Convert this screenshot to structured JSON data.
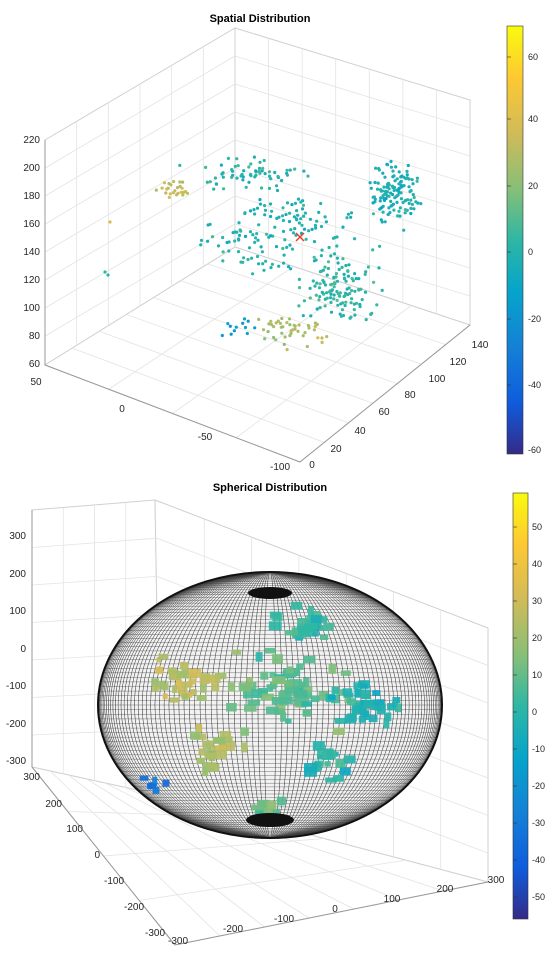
{
  "chart_data": [
    {
      "type": "scatter",
      "title": "Spatial Distribution",
      "xlabel": "",
      "ylabel": "",
      "zlabel": "",
      "grid": true,
      "z_ticks": [
        "220",
        "200",
        "180",
        "160",
        "140",
        "120",
        "100",
        "80",
        "60"
      ],
      "left_axis_ticks": [
        "50",
        "0",
        "-50",
        "-100"
      ],
      "right_axis_ticks": [
        "0",
        "20",
        "40",
        "60",
        "80",
        "100",
        "120",
        "140"
      ],
      "colorbar": {
        "min": -60,
        "max": 68,
        "ticks": [
          "60",
          "40",
          "20",
          "0",
          "-20",
          "-40",
          "-60"
        ],
        "colormap": "parula",
        "location": "right"
      },
      "marker_color": "#e5402e"
    },
    {
      "type": "scatter",
      "title": "Spherical Distribution",
      "xlabel": "",
      "ylabel": "",
      "zlabel": "",
      "grid": true,
      "surface": "ellipsoid mesh",
      "z_ticks": [
        "300",
        "200",
        "100",
        "0",
        "-100",
        "-200",
        "-300"
      ],
      "left_axis_ticks": [
        "300",
        "200",
        "100",
        "0",
        "-100",
        "-200",
        "-300"
      ],
      "right_axis_ticks": [
        "-300",
        "-200",
        "-100",
        "0",
        "100",
        "200",
        "300"
      ],
      "colorbar": {
        "min": -57,
        "max": 58,
        "ticks": [
          "50",
          "40",
          "30",
          "20",
          "10",
          "0",
          "-10",
          "-20",
          "-30",
          "-40",
          "-50"
        ],
        "colormap": "parula",
        "location": "right"
      }
    }
  ]
}
